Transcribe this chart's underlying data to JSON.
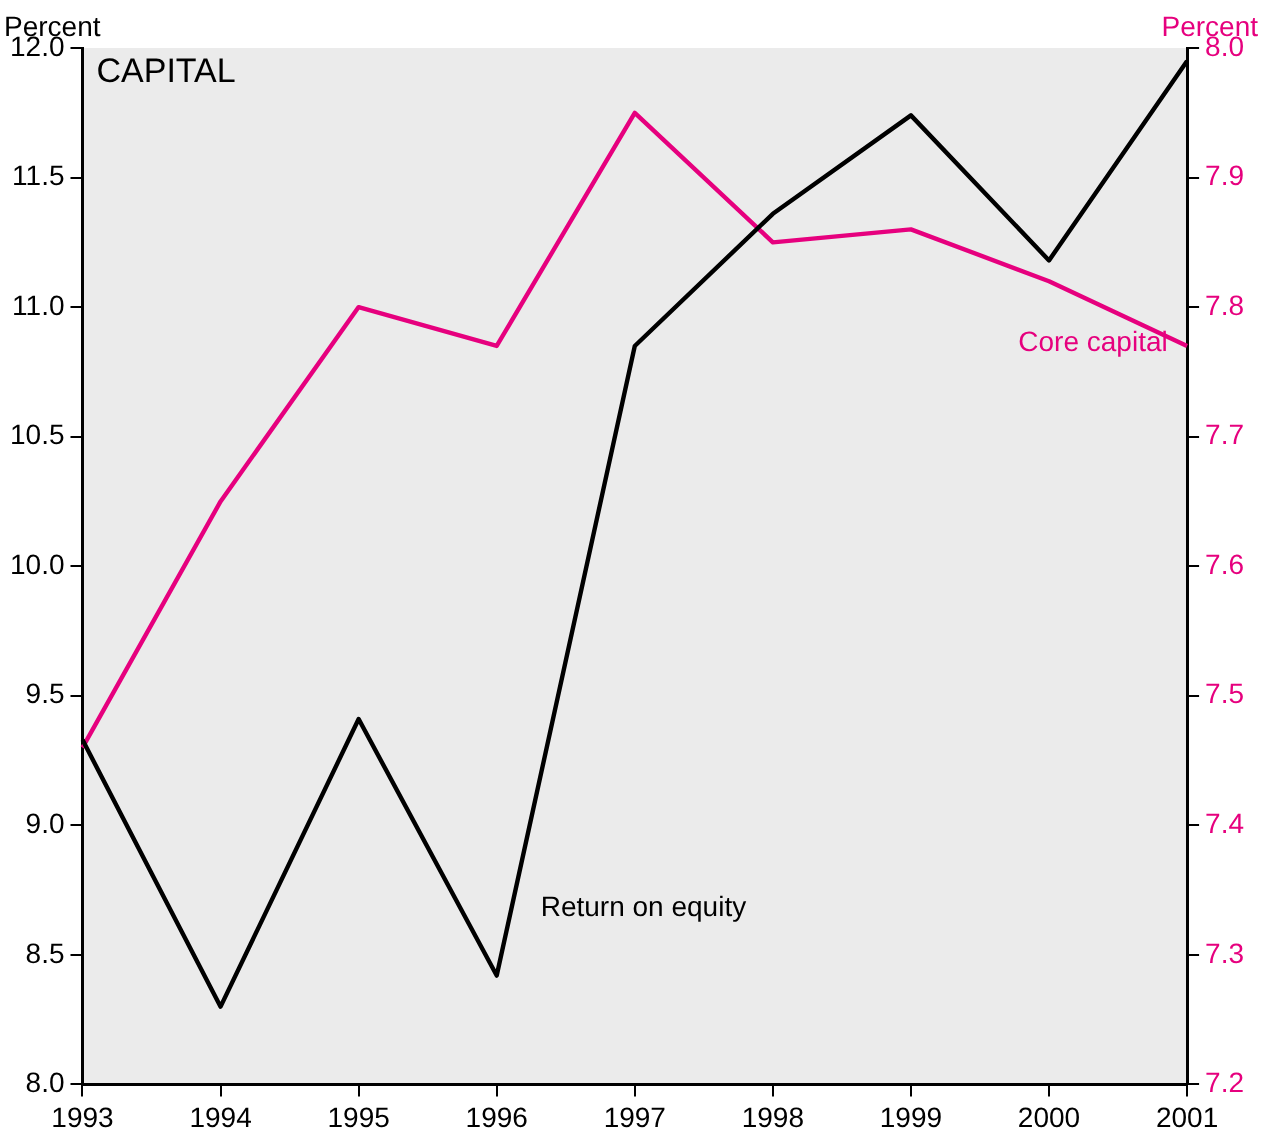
{
  "chart_data": {
    "type": "line",
    "title": "CAPITAL",
    "ylabel": "Percent",
    "y2label": "Percent",
    "categories": [
      "1993",
      "1994",
      "1995",
      "1996",
      "1997",
      "1998",
      "1999",
      "2000",
      "2001"
    ],
    "series": [
      {
        "name": "Return on equity",
        "color": "#000000",
        "values": [
          9.33,
          8.3,
          9.41,
          8.42,
          10.85,
          11.36,
          11.74,
          11.18,
          11.95
        ]
      },
      {
        "name": "Core capital",
        "color": "#e6007e",
        "axis": "y2",
        "values": [
          7.46,
          7.65,
          7.8,
          7.77,
          7.95,
          7.85,
          7.86,
          7.82,
          7.77
        ]
      }
    ],
    "ylim": [
      8,
      12
    ],
    "yticks": [
      {
        "value": 8,
        "label": "8.0"
      },
      {
        "value": 8.5,
        "label": "8.5"
      },
      {
        "value": 9,
        "label": "9.0"
      },
      {
        "value": 9.5,
        "label": "9.5"
      },
      {
        "value": 10,
        "label": "10.0"
      },
      {
        "value": 10.5,
        "label": "10.5"
      },
      {
        "value": 11,
        "label": "11.0"
      },
      {
        "value": 11.5,
        "label": "11.5"
      },
      {
        "value": 12,
        "label": "12.0"
      }
    ],
    "y2lim": [
      7.2,
      8
    ],
    "y2ticks": [
      7.2,
      7.3,
      7.4,
      7.5,
      7.6,
      7.7,
      7.8,
      7.9,
      {
        "value": 8,
        "label": "8.0"
      }
    ],
    "grid": false,
    "legend": false,
    "marker": "none",
    "line_style": "solid"
  }
}
